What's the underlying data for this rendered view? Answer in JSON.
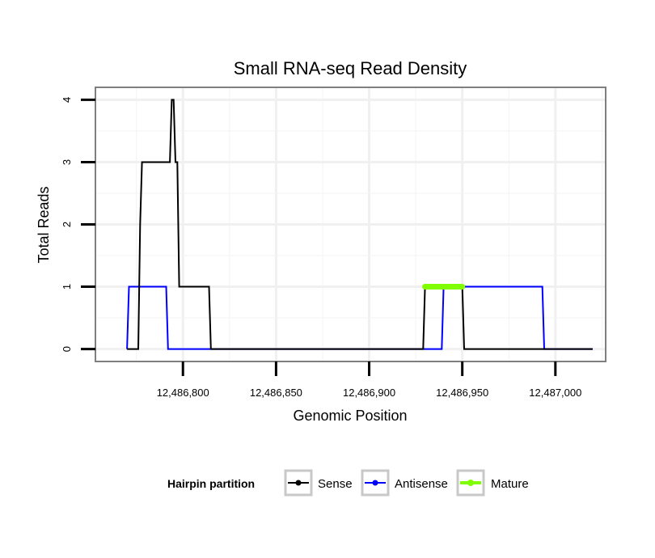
{
  "chart_data": {
    "type": "line",
    "title": "Small RNA-seq Read Density",
    "xlabel": "Genomic Position",
    "ylabel": "Total Reads",
    "xlim": [
      12486753,
      12487027
    ],
    "ylim": [
      -0.2,
      4.2
    ],
    "x_ticks": [
      12486800,
      12486850,
      12486900,
      12486950,
      12487000
    ],
    "x_tick_labels": [
      "12,486,800",
      "12,486,850",
      "12,486,900",
      "12,486,950",
      "12,487,000"
    ],
    "y_ticks": [
      0,
      1,
      2,
      3,
      4
    ],
    "y_tick_labels": [
      "0",
      "1",
      "2",
      "3",
      "4"
    ],
    "grid": true,
    "legend": {
      "title": "Hairpin partition",
      "position": "bottom",
      "entries": [
        "Sense",
        "Antisense",
        "Mature"
      ]
    },
    "series": [
      {
        "name": "Sense",
        "color": "#000000",
        "points": [
          [
            12486770,
            0
          ],
          [
            12486776,
            0
          ],
          [
            12486777,
            2
          ],
          [
            12486778,
            3
          ],
          [
            12486793,
            3
          ],
          [
            12486794,
            4
          ],
          [
            12486795,
            4
          ],
          [
            12486796,
            3
          ],
          [
            12486797,
            3
          ],
          [
            12486798,
            1
          ],
          [
            12486814,
            1
          ],
          [
            12486815,
            0
          ],
          [
            12486929,
            0
          ],
          [
            12486930,
            1
          ],
          [
            12486950,
            1
          ],
          [
            12486951,
            0
          ],
          [
            12487020,
            0
          ]
        ]
      },
      {
        "name": "Antisense",
        "color": "#0000ff",
        "points": [
          [
            12486770,
            0
          ],
          [
            12486771,
            1
          ],
          [
            12486791,
            1
          ],
          [
            12486792,
            0
          ],
          [
            12486939,
            0
          ],
          [
            12486940,
            1
          ],
          [
            12486993,
            1
          ],
          [
            12486994,
            0
          ],
          [
            12487020,
            0
          ]
        ]
      },
      {
        "name": "Mature",
        "color": "#7fff00",
        "points": [
          [
            12486930,
            1
          ],
          [
            12486950,
            1
          ]
        ]
      }
    ]
  }
}
